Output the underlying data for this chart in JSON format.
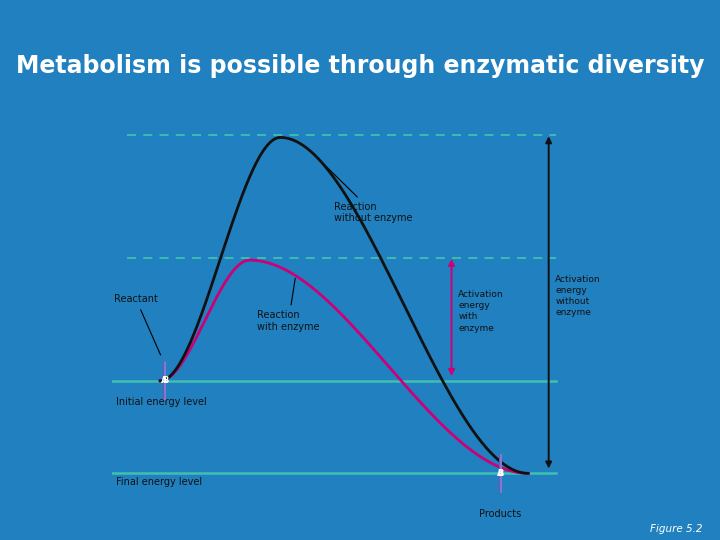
{
  "title": "Metabolism is possible through enzymatic diversity",
  "figure_label": "Figure 5.2",
  "bg_color": "#2080c0",
  "panel_bg": "#ffffff",
  "title_color": "#ffffff",
  "title_fontsize": 17,
  "line_color_no_enzyme": "#111111",
  "line_color_with_enzyme": "#cc0077",
  "arrow_color_no_enzyme": "#111111",
  "arrow_color_with_enzyme": "#cc0077",
  "dashed_line_color": "#40c0b0",
  "solid_line_color": "#40c0b0",
  "molecule_A_color": "#6655bb",
  "molecule_B_color": "#8877cc",
  "text_color": "#111111",
  "reactant_label": "Reactant",
  "reaction_no_enzyme_label": "Reaction\nwithout enzyme",
  "reaction_with_enzyme_label": "Reaction\nwith enzyme",
  "initial_energy_label": "Initial energy level",
  "final_energy_label": "Final energy level",
  "products_label": "Products",
  "activation_no_enzyme_label": "Activation\nenergy\nwithout\nenzyme",
  "activation_with_enzyme_label": "Activation\nenergy\nwith\nenzyme"
}
